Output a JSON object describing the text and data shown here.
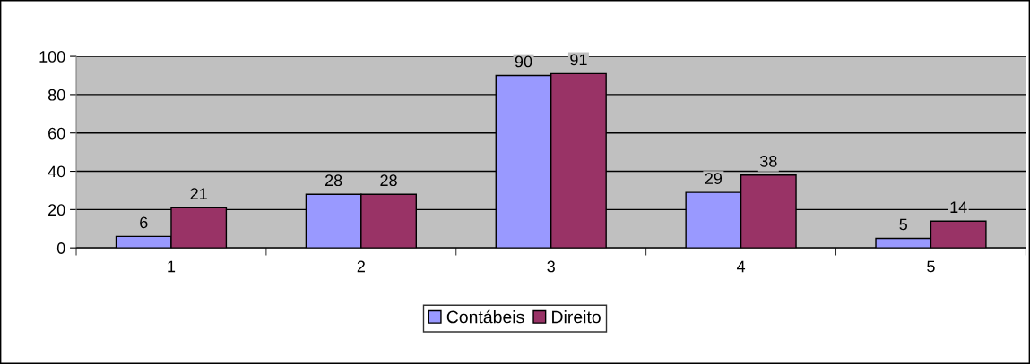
{
  "chart_data": {
    "type": "bar",
    "categories": [
      "1",
      "2",
      "3",
      "4",
      "5"
    ],
    "series": [
      {
        "name": "Contábeis",
        "color": "#9999ff",
        "values": [
          6,
          28,
          90,
          29,
          5
        ]
      },
      {
        "name": "Direito",
        "color": "#993366",
        "values": [
          21,
          28,
          91,
          38,
          14
        ]
      }
    ],
    "ylim": [
      0,
      100
    ],
    "yticks": [
      0,
      20,
      40,
      60,
      80,
      100
    ],
    "grid": "y",
    "legend": "bottom",
    "data_labels": true
  }
}
